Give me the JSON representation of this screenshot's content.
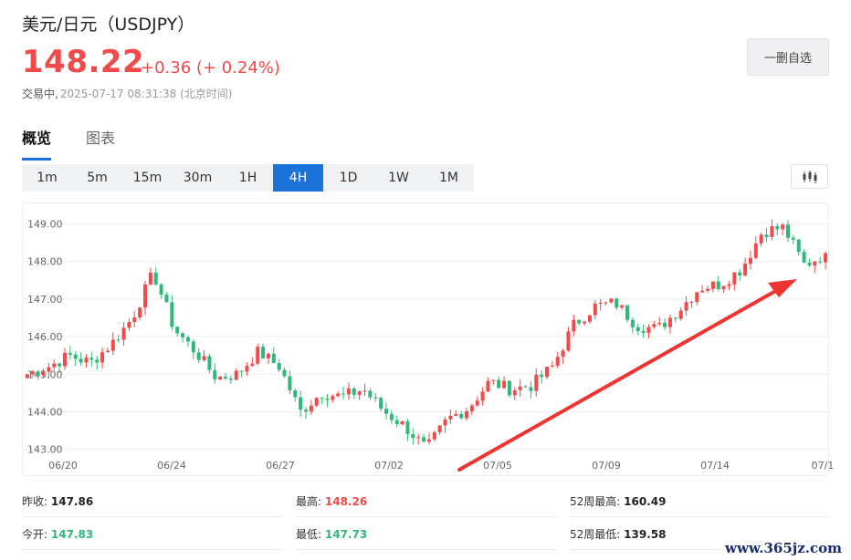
{
  "header": {
    "title": "美元/日元（USDJPY）",
    "price": "148.22",
    "change": "+0.36 (+ 0.24%)",
    "status_label": "交易中,",
    "timestamp": "2025-07-17 08:31:38 (北京时间)",
    "watchlist_button": "一删自选"
  },
  "tabs": [
    {
      "label": "概览",
      "active": true
    },
    {
      "label": "图表",
      "active": false
    }
  ],
  "periods": [
    {
      "label": "1m",
      "active": false
    },
    {
      "label": "5m",
      "active": false
    },
    {
      "label": "15m",
      "active": false
    },
    {
      "label": "30m",
      "active": false
    },
    {
      "label": "1H",
      "active": false
    },
    {
      "label": "4H",
      "active": true
    },
    {
      "label": "1D",
      "active": false
    },
    {
      "label": "1W",
      "active": false
    },
    {
      "label": "1M",
      "active": false
    }
  ],
  "chart_type_icon": "candlestick-icon",
  "colors": {
    "up": "#f04a4a",
    "down": "#2fb87a",
    "accent": "#1a73d9",
    "arrow": "#ee3333"
  },
  "chart_data": {
    "type": "candlestick",
    "title": "",
    "xlabel": "",
    "ylabel": "",
    "ylim": [
      142.75,
      149.3
    ],
    "y_ticks": [
      "149.00",
      "148.00",
      "147.00",
      "146.00",
      "145.00",
      "144.00",
      "143.00"
    ],
    "x_ticks": [
      "06/20",
      "06/24",
      "06/27",
      "07/02",
      "07/05",
      "07/09",
      "07/14",
      "07/1"
    ],
    "grid": true,
    "annotation": "red trend arrow pointing up-right toward latest candles",
    "close_path": [
      145.0,
      145.2,
      145.5,
      145.3,
      145.8,
      146.5,
      147.7,
      146.2,
      145.6,
      144.9,
      145.0,
      145.6,
      145.2,
      144.0,
      144.5,
      144.4,
      144.6,
      144.0,
      143.6,
      143.0,
      143.8,
      144.1,
      144.8,
      144.6,
      144.7,
      145.2,
      146.3,
      146.8,
      146.9,
      146.3,
      146.2,
      146.7,
      147.3,
      147.4,
      147.8,
      148.8,
      148.9,
      147.9,
      148.2
    ],
    "last_close": 148.22
  },
  "stats": [
    [
      {
        "label": "昨收:",
        "value": "147.86",
        "tone": ""
      },
      {
        "label": "最高:",
        "value": "148.26",
        "tone": "up"
      },
      {
        "label": "52周最高:",
        "value": "160.49",
        "tone": ""
      }
    ],
    [
      {
        "label": "今开:",
        "value": "147.83",
        "tone": "down"
      },
      {
        "label": "最低:",
        "value": "147.73",
        "tone": "down"
      },
      {
        "label": "52周最低:",
        "value": "139.58",
        "tone": ""
      }
    ]
  ],
  "watermark": "www.365jz.com"
}
